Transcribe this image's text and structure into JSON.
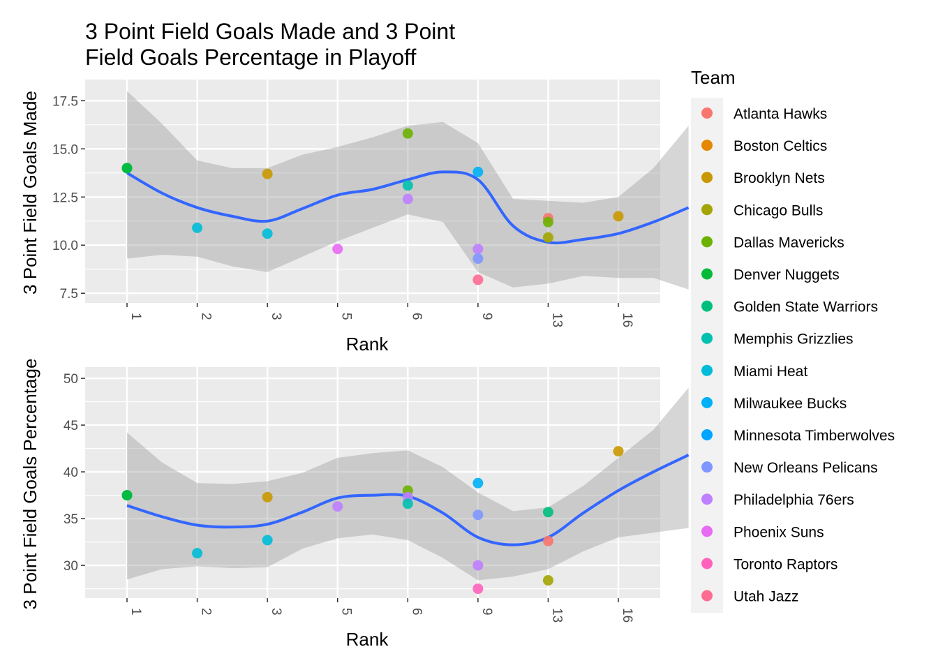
{
  "title_line1": "3 Point Field Goals Made and 3 Point",
  "title_line2": "Field Goals Percentage in Playoff",
  "legend": {
    "title": "Team",
    "entries": [
      {
        "team": "Atlanta Hawks",
        "color": "#F8766D"
      },
      {
        "team": "Boston Celtics",
        "color": "#E58700"
      },
      {
        "team": "Brooklyn Nets",
        "color": "#C99800"
      },
      {
        "team": "Chicago Bulls",
        "color": "#A3A500"
      },
      {
        "team": "Dallas Mavericks",
        "color": "#6BB100"
      },
      {
        "team": "Denver Nuggets",
        "color": "#00BA38"
      },
      {
        "team": "Golden State Warriors",
        "color": "#00BF7D"
      },
      {
        "team": "Memphis Grizzlies",
        "color": "#00C0AF"
      },
      {
        "team": "Miami Heat",
        "color": "#00BCD8"
      },
      {
        "team": "Milwaukee Bucks",
        "color": "#00B0F6"
      },
      {
        "team": "Minnesota Timberwolves",
        "color": "#00A5FF"
      },
      {
        "team": "New Orleans Pelicans",
        "color": "#7F96FF"
      },
      {
        "team": "Philadelphia 76ers",
        "color": "#BF80FF"
      },
      {
        "team": "Phoenix Suns",
        "color": "#E76BF3"
      },
      {
        "team": "Toronto Raptors",
        "color": "#FF62BC"
      },
      {
        "team": "Utah Jazz",
        "color": "#FF6C91"
      }
    ]
  },
  "chart_data": [
    {
      "type": "scatter",
      "xlabel": "Rank",
      "ylabel": "3 Point Field Goals Made",
      "categories": [
        "1",
        "2",
        "3",
        "5",
        "6",
        "9",
        "13",
        "16"
      ],
      "yticks": [
        "7.5",
        "10.0",
        "12.5",
        "15.0",
        "17.5"
      ],
      "ylim": [
        7.0,
        18.6
      ],
      "points": [
        {
          "rank": "1",
          "value": 14.0,
          "team": "Golden State Warriors"
        },
        {
          "rank": "1",
          "value": 14.0,
          "team": "Denver Nuggets"
        },
        {
          "rank": "2",
          "value": 10.9,
          "team": "Miami Heat"
        },
        {
          "rank": "3",
          "value": 13.7,
          "team": "Brooklyn Nets"
        },
        {
          "rank": "3",
          "value": 10.6,
          "team": "Miami Heat"
        },
        {
          "rank": "5",
          "value": 9.8,
          "team": "Phoenix Suns"
        },
        {
          "rank": "6",
          "value": 15.8,
          "team": "Dallas Mavericks"
        },
        {
          "rank": "6",
          "value": 13.1,
          "team": "Memphis Grizzlies"
        },
        {
          "rank": "6",
          "value": 12.4,
          "team": "Philadelphia 76ers"
        },
        {
          "rank": "9",
          "value": 13.8,
          "team": "Milwaukee Bucks"
        },
        {
          "rank": "9",
          "value": 9.8,
          "team": "Philadelphia 76ers"
        },
        {
          "rank": "9",
          "value": 9.3,
          "team": "New Orleans Pelicans"
        },
        {
          "rank": "9",
          "value": 8.2,
          "team": "Utah Jazz"
        },
        {
          "rank": "13",
          "value": 11.4,
          "team": "Atlanta Hawks"
        },
        {
          "rank": "13",
          "value": 11.2,
          "team": "Dallas Mavericks"
        },
        {
          "rank": "13",
          "value": 10.4,
          "team": "Chicago Bulls"
        },
        {
          "rank": "16",
          "value": 11.5,
          "team": "Brooklyn Nets"
        }
      ],
      "smooth": [
        [
          1,
          13.75
        ],
        [
          1.5,
          12.7
        ],
        [
          2,
          11.95
        ],
        [
          2.5,
          11.5
        ],
        [
          3,
          11.25
        ],
        [
          3.5,
          11.9
        ],
        [
          4,
          12.6
        ],
        [
          4.5,
          12.9
        ],
        [
          5,
          13.4
        ],
        [
          5.5,
          13.8
        ],
        [
          6,
          13.4
        ],
        [
          6.5,
          11.0
        ],
        [
          7,
          10.15
        ],
        [
          7.5,
          10.3
        ],
        [
          8,
          10.6
        ],
        [
          8.5,
          11.2
        ],
        [
          9,
          11.95
        ]
      ],
      "band_upper": [
        [
          1,
          18.0
        ],
        [
          1.5,
          16.3
        ],
        [
          2,
          14.4
        ],
        [
          2.5,
          14.0
        ],
        [
          3,
          14.0
        ],
        [
          3.5,
          14.7
        ],
        [
          4,
          15.1
        ],
        [
          4.5,
          15.6
        ],
        [
          5,
          16.2
        ],
        [
          5.5,
          16.4
        ],
        [
          6,
          15.3
        ],
        [
          6.5,
          12.4
        ],
        [
          7,
          12.3
        ],
        [
          7.5,
          12.2
        ],
        [
          8,
          12.5
        ],
        [
          8.5,
          14.0
        ],
        [
          9,
          16.2
        ]
      ],
      "band_lower": [
        [
          1,
          9.3
        ],
        [
          1.5,
          9.5
        ],
        [
          2,
          9.4
        ],
        [
          2.5,
          8.9
        ],
        [
          3,
          8.6
        ],
        [
          3.5,
          9.4
        ],
        [
          4,
          10.2
        ],
        [
          4.5,
          10.9
        ],
        [
          5,
          11.6
        ],
        [
          5.5,
          11.2
        ],
        [
          6,
          8.6
        ],
        [
          6.5,
          7.8
        ],
        [
          7,
          8.0
        ],
        [
          7.5,
          8.4
        ],
        [
          8,
          8.3
        ],
        [
          8.5,
          8.3
        ],
        [
          9,
          7.7
        ]
      ]
    },
    {
      "type": "scatter",
      "xlabel": "Rank",
      "ylabel": "3 Point Field Goals Percentage",
      "categories": [
        "1",
        "2",
        "3",
        "5",
        "6",
        "9",
        "13",
        "16"
      ],
      "yticks": [
        "30",
        "35",
        "40",
        "45",
        "50"
      ],
      "ylim": [
        26.5,
        51.2
      ],
      "points": [
        {
          "rank": "1",
          "value": 37.5,
          "team": "Golden State Warriors"
        },
        {
          "rank": "1",
          "value": 37.5,
          "team": "Denver Nuggets"
        },
        {
          "rank": "2",
          "value": 31.3,
          "team": "Miami Heat"
        },
        {
          "rank": "3",
          "value": 37.3,
          "team": "Brooklyn Nets"
        },
        {
          "rank": "3",
          "value": 32.7,
          "team": "Miami Heat"
        },
        {
          "rank": "5",
          "value": 36.3,
          "team": "Philadelphia 76ers"
        },
        {
          "rank": "6",
          "value": 38.0,
          "team": "Dallas Mavericks"
        },
        {
          "rank": "6",
          "value": 37.3,
          "team": "Philadelphia 76ers"
        },
        {
          "rank": "6",
          "value": 36.6,
          "team": "Memphis Grizzlies"
        },
        {
          "rank": "9",
          "value": 38.8,
          "team": "Milwaukee Bucks"
        },
        {
          "rank": "9",
          "value": 35.4,
          "team": "New Orleans Pelicans"
        },
        {
          "rank": "9",
          "value": 30.0,
          "team": "Philadelphia 76ers"
        },
        {
          "rank": "9",
          "value": 27.5,
          "team": "Toronto Raptors"
        },
        {
          "rank": "13",
          "value": 35.7,
          "team": "Golden State Warriors"
        },
        {
          "rank": "13",
          "value": 32.6,
          "team": "Atlanta Hawks"
        },
        {
          "rank": "13",
          "value": 28.4,
          "team": "Chicago Bulls"
        },
        {
          "rank": "16",
          "value": 42.2,
          "team": "Brooklyn Nets"
        }
      ],
      "smooth": [
        [
          1,
          36.4
        ],
        [
          1.5,
          35.2
        ],
        [
          2,
          34.3
        ],
        [
          2.5,
          34.1
        ],
        [
          3,
          34.4
        ],
        [
          3.5,
          35.7
        ],
        [
          4,
          37.2
        ],
        [
          4.5,
          37.5
        ],
        [
          5,
          37.4
        ],
        [
          5.5,
          35.6
        ],
        [
          6,
          33.0
        ],
        [
          6.5,
          32.2
        ],
        [
          7,
          33.0
        ],
        [
          7.5,
          35.6
        ],
        [
          8,
          38.0
        ],
        [
          8.5,
          40.0
        ],
        [
          9,
          41.8
        ]
      ],
      "band_upper": [
        [
          1,
          44.2
        ],
        [
          1.5,
          41.0
        ],
        [
          2,
          38.8
        ],
        [
          2.5,
          38.7
        ],
        [
          3,
          39.0
        ],
        [
          3.5,
          39.9
        ],
        [
          4,
          41.5
        ],
        [
          4.5,
          42.0
        ],
        [
          5,
          42.3
        ],
        [
          5.5,
          40.5
        ],
        [
          6,
          37.8
        ],
        [
          6.5,
          35.8
        ],
        [
          7,
          36.2
        ],
        [
          7.5,
          38.5
        ],
        [
          8,
          41.5
        ],
        [
          8.5,
          44.5
        ],
        [
          9,
          49.0
        ]
      ],
      "band_lower": [
        [
          1,
          28.5
        ],
        [
          1.5,
          29.6
        ],
        [
          2,
          29.9
        ],
        [
          2.5,
          29.7
        ],
        [
          3,
          29.8
        ],
        [
          3.5,
          31.8
        ],
        [
          4,
          32.9
        ],
        [
          4.5,
          33.3
        ],
        [
          5,
          32.7
        ],
        [
          5.5,
          30.8
        ],
        [
          6,
          28.4
        ],
        [
          6.5,
          28.8
        ],
        [
          7,
          29.6
        ],
        [
          7.5,
          31.5
        ],
        [
          8,
          33.0
        ],
        [
          8.5,
          33.5
        ],
        [
          9,
          34.0
        ]
      ]
    }
  ]
}
